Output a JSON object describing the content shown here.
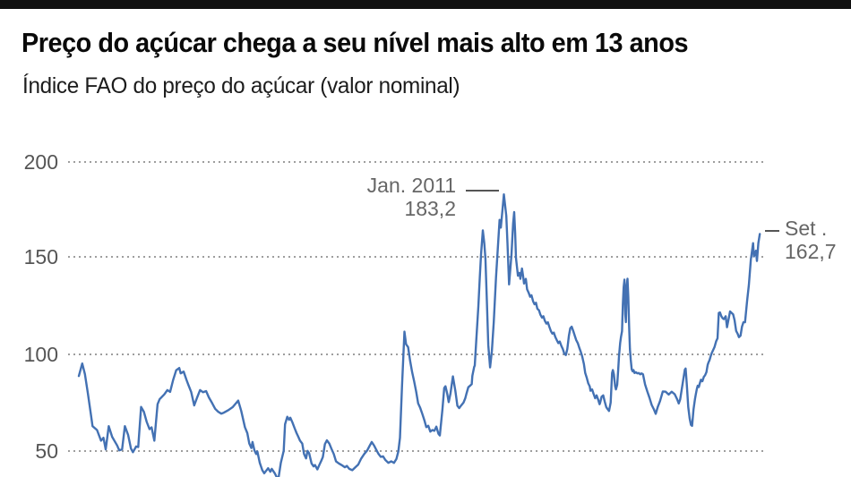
{
  "header": {
    "title": "Preço do açúcar chega a seu nível mais alto em 13 anos",
    "subtitle": "Índice FAO do preço do açúcar (valor nominal)"
  },
  "colors": {
    "line": "#4371b3",
    "accent_bar": "#111111",
    "grid": "#9e9e9e",
    "annotation_text": "#666666"
  },
  "chart_data": {
    "type": "line",
    "title": "Preço do açúcar chega a seu nível mais alto em 13 anos",
    "subtitle": "Índice FAO do preço do açúcar (valor nominal)",
    "series_name": "Índice FAO do preço do açúcar (valor nominal)",
    "xlabel": "",
    "ylabel": "",
    "x_range": [
      1990.0,
      2023.71
    ],
    "ylim": [
      36,
      205
    ],
    "yticks": [
      200,
      150,
      100,
      50
    ],
    "ytick_labels": [
      "200",
      "150",
      "100",
      "50"
    ],
    "grid": "horizontal dotted",
    "legend": "none",
    "line_color": "#4371b3",
    "annotations": [
      {
        "label": "Jan. 2011",
        "value_label": "183,2",
        "x": 2011.04,
        "y": 183.2
      },
      {
        "label": "Set .",
        "value_label": "162,7",
        "x": 2023.71,
        "y": 162.7
      }
    ],
    "points": [
      [
        1990.0,
        89
      ],
      [
        1990.17,
        95.5
      ],
      [
        1990.3,
        90
      ],
      [
        1990.45,
        80
      ],
      [
        1990.6,
        69
      ],
      [
        1990.68,
        63
      ],
      [
        1990.9,
        61
      ],
      [
        1991.1,
        55.5
      ],
      [
        1991.22,
        57
      ],
      [
        1991.33,
        51
      ],
      [
        1991.48,
        63
      ],
      [
        1991.65,
        57.5
      ],
      [
        1991.9,
        53
      ],
      [
        1992.0,
        50.5
      ],
      [
        1992.14,
        51
      ],
      [
        1992.28,
        63
      ],
      [
        1992.44,
        58.5
      ],
      [
        1992.58,
        51.4
      ],
      [
        1992.68,
        49.5
      ],
      [
        1992.84,
        52.5
      ],
      [
        1992.94,
        52.2
      ],
      [
        1993.08,
        73
      ],
      [
        1993.22,
        70.5
      ],
      [
        1993.36,
        65.2
      ],
      [
        1993.5,
        61.5
      ],
      [
        1993.6,
        62.4
      ],
      [
        1993.74,
        55.5
      ],
      [
        1993.9,
        74.4
      ],
      [
        1994.0,
        77
      ],
      [
        1994.23,
        79.5
      ],
      [
        1994.38,
        81.7
      ],
      [
        1994.52,
        80.8
      ],
      [
        1994.67,
        87
      ],
      [
        1994.82,
        92
      ],
      [
        1994.97,
        93.2
      ],
      [
        1995.04,
        90.4
      ],
      [
        1995.19,
        91.3
      ],
      [
        1995.33,
        87
      ],
      [
        1995.41,
        84.8
      ],
      [
        1995.56,
        80.8
      ],
      [
        1995.71,
        73.8
      ],
      [
        1995.85,
        77.7
      ],
      [
        1996.0,
        81.7
      ],
      [
        1996.15,
        80.6
      ],
      [
        1996.3,
        81.2
      ],
      [
        1996.44,
        77.9
      ],
      [
        1996.6,
        75
      ],
      [
        1996.75,
        72
      ],
      [
        1996.9,
        70.5
      ],
      [
        1997.05,
        69.5
      ],
      [
        1997.18,
        70
      ],
      [
        1997.4,
        71.3
      ],
      [
        1997.62,
        72.9
      ],
      [
        1997.89,
        76.3
      ],
      [
        1998.04,
        70.9
      ],
      [
        1998.22,
        62.5
      ],
      [
        1998.34,
        59.4
      ],
      [
        1998.44,
        54
      ],
      [
        1998.54,
        51.7
      ],
      [
        1998.6,
        54.8
      ],
      [
        1998.69,
        50.5
      ],
      [
        1998.78,
        48.6
      ],
      [
        1998.84,
        49.9
      ],
      [
        1998.96,
        44
      ],
      [
        1999.08,
        40.2
      ],
      [
        1999.18,
        38.6
      ],
      [
        1999.37,
        41.2
      ],
      [
        1999.48,
        39.4
      ],
      [
        1999.55,
        40.9
      ],
      [
        1999.7,
        38.6
      ],
      [
        1999.8,
        36.5
      ],
      [
        1999.9,
        37
      ],
      [
        2000.0,
        44
      ],
      [
        2000.07,
        47.1
      ],
      [
        2000.14,
        50.2
      ],
      [
        2000.21,
        64
      ],
      [
        2000.32,
        67.9
      ],
      [
        2000.41,
        66.3
      ],
      [
        2000.47,
        67.4
      ],
      [
        2000.58,
        64.8
      ],
      [
        2000.69,
        61.7
      ],
      [
        2000.78,
        59.4
      ],
      [
        2000.85,
        57.8
      ],
      [
        2000.95,
        55.5
      ],
      [
        2001.06,
        54
      ],
      [
        2001.15,
        48.6
      ],
      [
        2001.25,
        46.3
      ],
      [
        2001.32,
        50.2
      ],
      [
        2001.4,
        49
      ],
      [
        2001.52,
        43.7
      ],
      [
        2001.62,
        42.2
      ],
      [
        2001.69,
        42.9
      ],
      [
        2001.81,
        40.6
      ],
      [
        2001.91,
        43
      ],
      [
        2002.0,
        45
      ],
      [
        2002.08,
        47
      ],
      [
        2002.18,
        53.7
      ],
      [
        2002.28,
        55.7
      ],
      [
        2002.4,
        54
      ],
      [
        2002.5,
        51.4
      ],
      [
        2002.62,
        48.6
      ],
      [
        2002.73,
        44.8
      ],
      [
        2002.87,
        43.7
      ],
      [
        2003.02,
        42.8
      ],
      [
        2003.17,
        41.7
      ],
      [
        2003.27,
        42.4
      ],
      [
        2003.39,
        40.9
      ],
      [
        2003.54,
        40.2
      ],
      [
        2003.69,
        41.7
      ],
      [
        2003.83,
        43.1
      ],
      [
        2003.98,
        46.2
      ],
      [
        2004.13,
        48.6
      ],
      [
        2004.28,
        50.5
      ],
      [
        2004.42,
        53.3
      ],
      [
        2004.5,
        54.8
      ],
      [
        2004.62,
        52.9
      ],
      [
        2004.72,
        50.9
      ],
      [
        2004.84,
        48.6
      ],
      [
        2004.95,
        47.1
      ],
      [
        2005.06,
        47.4
      ],
      [
        2005.17,
        45.5
      ],
      [
        2005.32,
        44
      ],
      [
        2005.47,
        44.8
      ],
      [
        2005.6,
        44
      ],
      [
        2005.72,
        46
      ],
      [
        2005.82,
        50
      ],
      [
        2005.9,
        57
      ],
      [
        2006.0,
        84
      ],
      [
        2006.12,
        112
      ],
      [
        2006.2,
        105.5
      ],
      [
        2006.3,
        104
      ],
      [
        2006.4,
        97
      ],
      [
        2006.5,
        91
      ],
      [
        2006.6,
        86.3
      ],
      [
        2006.7,
        80.9
      ],
      [
        2006.8,
        74.8
      ],
      [
        2006.9,
        72.5
      ],
      [
        2007.0,
        69.4
      ],
      [
        2007.1,
        66.3
      ],
      [
        2007.2,
        62.5
      ],
      [
        2007.3,
        63.2
      ],
      [
        2007.4,
        60.2
      ],
      [
        2007.5,
        61
      ],
      [
        2007.6,
        60.6
      ],
      [
        2007.7,
        62.8
      ],
      [
        2007.8,
        59.1
      ],
      [
        2007.87,
        58.2
      ],
      [
        2008.0,
        71.7
      ],
      [
        2008.09,
        82.8
      ],
      [
        2008.15,
        83.7
      ],
      [
        2008.24,
        79.7
      ],
      [
        2008.31,
        75.5
      ],
      [
        2008.4,
        80
      ],
      [
        2008.52,
        88.8
      ],
      [
        2008.64,
        81.4
      ],
      [
        2008.74,
        73.6
      ],
      [
        2008.83,
        72.4
      ],
      [
        2008.94,
        73.9
      ],
      [
        2009.04,
        75.2
      ],
      [
        2009.13,
        77.5
      ],
      [
        2009.19,
        79.8
      ],
      [
        2009.28,
        83.2
      ],
      [
        2009.38,
        84.1
      ],
      [
        2009.45,
        84.8
      ],
      [
        2009.48,
        89.1
      ],
      [
        2009.57,
        93.7
      ],
      [
        2009.6,
        94.5
      ],
      [
        2009.69,
        110
      ],
      [
        2009.78,
        125
      ],
      [
        2009.85,
        140
      ],
      [
        2009.91,
        152
      ],
      [
        2010.0,
        164.5
      ],
      [
        2010.07,
        158
      ],
      [
        2010.13,
        150
      ],
      [
        2010.2,
        128
      ],
      [
        2010.27,
        105
      ],
      [
        2010.36,
        93.5
      ],
      [
        2010.45,
        102
      ],
      [
        2010.54,
        117
      ],
      [
        2010.65,
        140
      ],
      [
        2010.74,
        155
      ],
      [
        2010.83,
        170
      ],
      [
        2010.89,
        166
      ],
      [
        2010.98,
        176
      ],
      [
        2011.04,
        183.2
      ],
      [
        2011.16,
        172
      ],
      [
        2011.22,
        158
      ],
      [
        2011.3,
        136.5
      ],
      [
        2011.42,
        152
      ],
      [
        2011.5,
        168
      ],
      [
        2011.55,
        174
      ],
      [
        2011.6,
        163
      ],
      [
        2011.64,
        150.2
      ],
      [
        2011.7,
        144.8
      ],
      [
        2011.74,
        141
      ],
      [
        2011.82,
        142.5
      ],
      [
        2011.86,
        139.4
      ],
      [
        2011.94,
        144.8
      ],
      [
        2011.99,
        141
      ],
      [
        2012.04,
        137
      ],
      [
        2012.13,
        139.4
      ],
      [
        2012.19,
        134
      ],
      [
        2012.26,
        132.4
      ],
      [
        2012.34,
        130.1
      ],
      [
        2012.41,
        130.9
      ],
      [
        2012.49,
        127.8
      ],
      [
        2012.56,
        126.2
      ],
      [
        2012.63,
        127
      ],
      [
        2012.7,
        123.9
      ],
      [
        2012.78,
        123.1
      ],
      [
        2012.85,
        120.8
      ],
      [
        2012.93,
        119.3
      ],
      [
        2013.0,
        120
      ],
      [
        2013.07,
        117.7
      ],
      [
        2013.15,
        116.2
      ],
      [
        2013.22,
        116.9
      ],
      [
        2013.29,
        114.6
      ],
      [
        2013.37,
        112.3
      ],
      [
        2013.44,
        111
      ],
      [
        2013.51,
        111.5
      ],
      [
        2013.59,
        109.2
      ],
      [
        2013.66,
        107.7
      ],
      [
        2013.74,
        106.1
      ],
      [
        2013.81,
        106.9
      ],
      [
        2013.89,
        104.6
      ],
      [
        2013.96,
        103
      ],
      [
        2014.03,
        100.7
      ],
      [
        2014.11,
        99.9
      ],
      [
        2014.18,
        103
      ],
      [
        2014.26,
        110
      ],
      [
        2014.33,
        113.8
      ],
      [
        2014.4,
        114.6
      ],
      [
        2014.48,
        112.3
      ],
      [
        2014.55,
        110
      ],
      [
        2014.62,
        107.7
      ],
      [
        2014.7,
        106.1
      ],
      [
        2014.77,
        103.8
      ],
      [
        2014.85,
        101.5
      ],
      [
        2014.92,
        99.2
      ],
      [
        2015.0,
        95.3
      ],
      [
        2015.07,
        90.6
      ],
      [
        2015.14,
        88.3
      ],
      [
        2015.22,
        85.2
      ],
      [
        2015.29,
        83.7
      ],
      [
        2015.33,
        81.4
      ],
      [
        2015.41,
        82.1
      ],
      [
        2015.48,
        79.8
      ],
      [
        2015.56,
        77.5
      ],
      [
        2015.63,
        79
      ],
      [
        2015.71,
        76.7
      ],
      [
        2015.78,
        74.4
      ],
      [
        2015.81,
        75.2
      ],
      [
        2015.88,
        78.3
      ],
      [
        2015.96,
        79
      ],
      [
        2016.03,
        75.9
      ],
      [
        2016.11,
        72.9
      ],
      [
        2016.18,
        71.8
      ],
      [
        2016.25,
        70.9
      ],
      [
        2016.33,
        75.2
      ],
      [
        2016.4,
        90.6
      ],
      [
        2016.44,
        92.1
      ],
      [
        2016.49,
        89.9
      ],
      [
        2016.55,
        83.7
      ],
      [
        2016.59,
        82.1
      ],
      [
        2016.65,
        84.5
      ],
      [
        2016.7,
        92.1
      ],
      [
        2016.74,
        99.2
      ],
      [
        2016.8,
        106.1
      ],
      [
        2016.84,
        109.2
      ],
      [
        2016.89,
        112.3
      ],
      [
        2016.93,
        126
      ],
      [
        2016.97,
        135
      ],
      [
        2017.01,
        139
      ],
      [
        2017.05,
        121
      ],
      [
        2017.08,
        117
      ],
      [
        2017.12,
        136
      ],
      [
        2017.16,
        139.5
      ],
      [
        2017.2,
        130
      ],
      [
        2017.24,
        115
      ],
      [
        2017.28,
        103
      ],
      [
        2017.32,
        97.6
      ],
      [
        2017.37,
        92.5
      ],
      [
        2017.42,
        91.4
      ],
      [
        2017.46,
        92.1
      ],
      [
        2017.51,
        90.6
      ],
      [
        2017.58,
        91
      ],
      [
        2017.65,
        90.4
      ],
      [
        2017.72,
        90.6
      ],
      [
        2017.79,
        89.9
      ],
      [
        2017.86,
        90.4
      ],
      [
        2017.93,
        89.9
      ],
      [
        2018.03,
        84.7
      ],
      [
        2018.14,
        81
      ],
      [
        2018.25,
        77.8
      ],
      [
        2018.36,
        74
      ],
      [
        2018.47,
        71.7
      ],
      [
        2018.56,
        69.4
      ],
      [
        2018.66,
        73
      ],
      [
        2018.77,
        76
      ],
      [
        2018.91,
        81
      ],
      [
        2019.05,
        80.9
      ],
      [
        2019.2,
        79.4
      ],
      [
        2019.35,
        80.9
      ],
      [
        2019.5,
        79.6
      ],
      [
        2019.62,
        77
      ],
      [
        2019.7,
        74.8
      ],
      [
        2019.77,
        76.9
      ],
      [
        2019.9,
        85.5
      ],
      [
        2020.0,
        92.3
      ],
      [
        2020.04,
        92.9
      ],
      [
        2020.1,
        84
      ],
      [
        2020.17,
        73
      ],
      [
        2020.24,
        67
      ],
      [
        2020.3,
        63.7
      ],
      [
        2020.36,
        63.2
      ],
      [
        2020.43,
        71.7
      ],
      [
        2020.5,
        77
      ],
      [
        2020.54,
        79.4
      ],
      [
        2020.6,
        82.5
      ],
      [
        2020.64,
        84
      ],
      [
        2020.69,
        83.3
      ],
      [
        2020.75,
        85.5
      ],
      [
        2020.8,
        87.1
      ],
      [
        2020.87,
        86.3
      ],
      [
        2020.94,
        88.6
      ],
      [
        2021.0,
        89.4
      ],
      [
        2021.07,
        91
      ],
      [
        2021.13,
        94.8
      ],
      [
        2021.18,
        96.3
      ],
      [
        2021.22,
        97.1
      ],
      [
        2021.28,
        99.4
      ],
      [
        2021.33,
        100.9
      ],
      [
        2021.4,
        102.5
      ],
      [
        2021.47,
        104
      ],
      [
        2021.55,
        107.1
      ],
      [
        2021.62,
        108.6
      ],
      [
        2021.68,
        121.7
      ],
      [
        2021.74,
        122
      ],
      [
        2021.81,
        120
      ],
      [
        2021.87,
        119
      ],
      [
        2021.93,
        118.5
      ],
      [
        2022.02,
        120
      ],
      [
        2022.09,
        114.3
      ],
      [
        2022.24,
        122.5
      ],
      [
        2022.39,
        121
      ],
      [
        2022.46,
        118
      ],
      [
        2022.54,
        112.4
      ],
      [
        2022.61,
        111
      ],
      [
        2022.68,
        109.2
      ],
      [
        2022.76,
        110
      ],
      [
        2022.83,
        114.6
      ],
      [
        2022.9,
        116.9
      ],
      [
        2022.98,
        116.9
      ],
      [
        2023.08,
        127.9
      ],
      [
        2023.17,
        136.3
      ],
      [
        2023.27,
        149.4
      ],
      [
        2023.38,
        157.9
      ],
      [
        2023.42,
        151
      ],
      [
        2023.52,
        154
      ],
      [
        2023.57,
        148.7
      ],
      [
        2023.64,
        158
      ],
      [
        2023.71,
        162.7
      ]
    ]
  }
}
